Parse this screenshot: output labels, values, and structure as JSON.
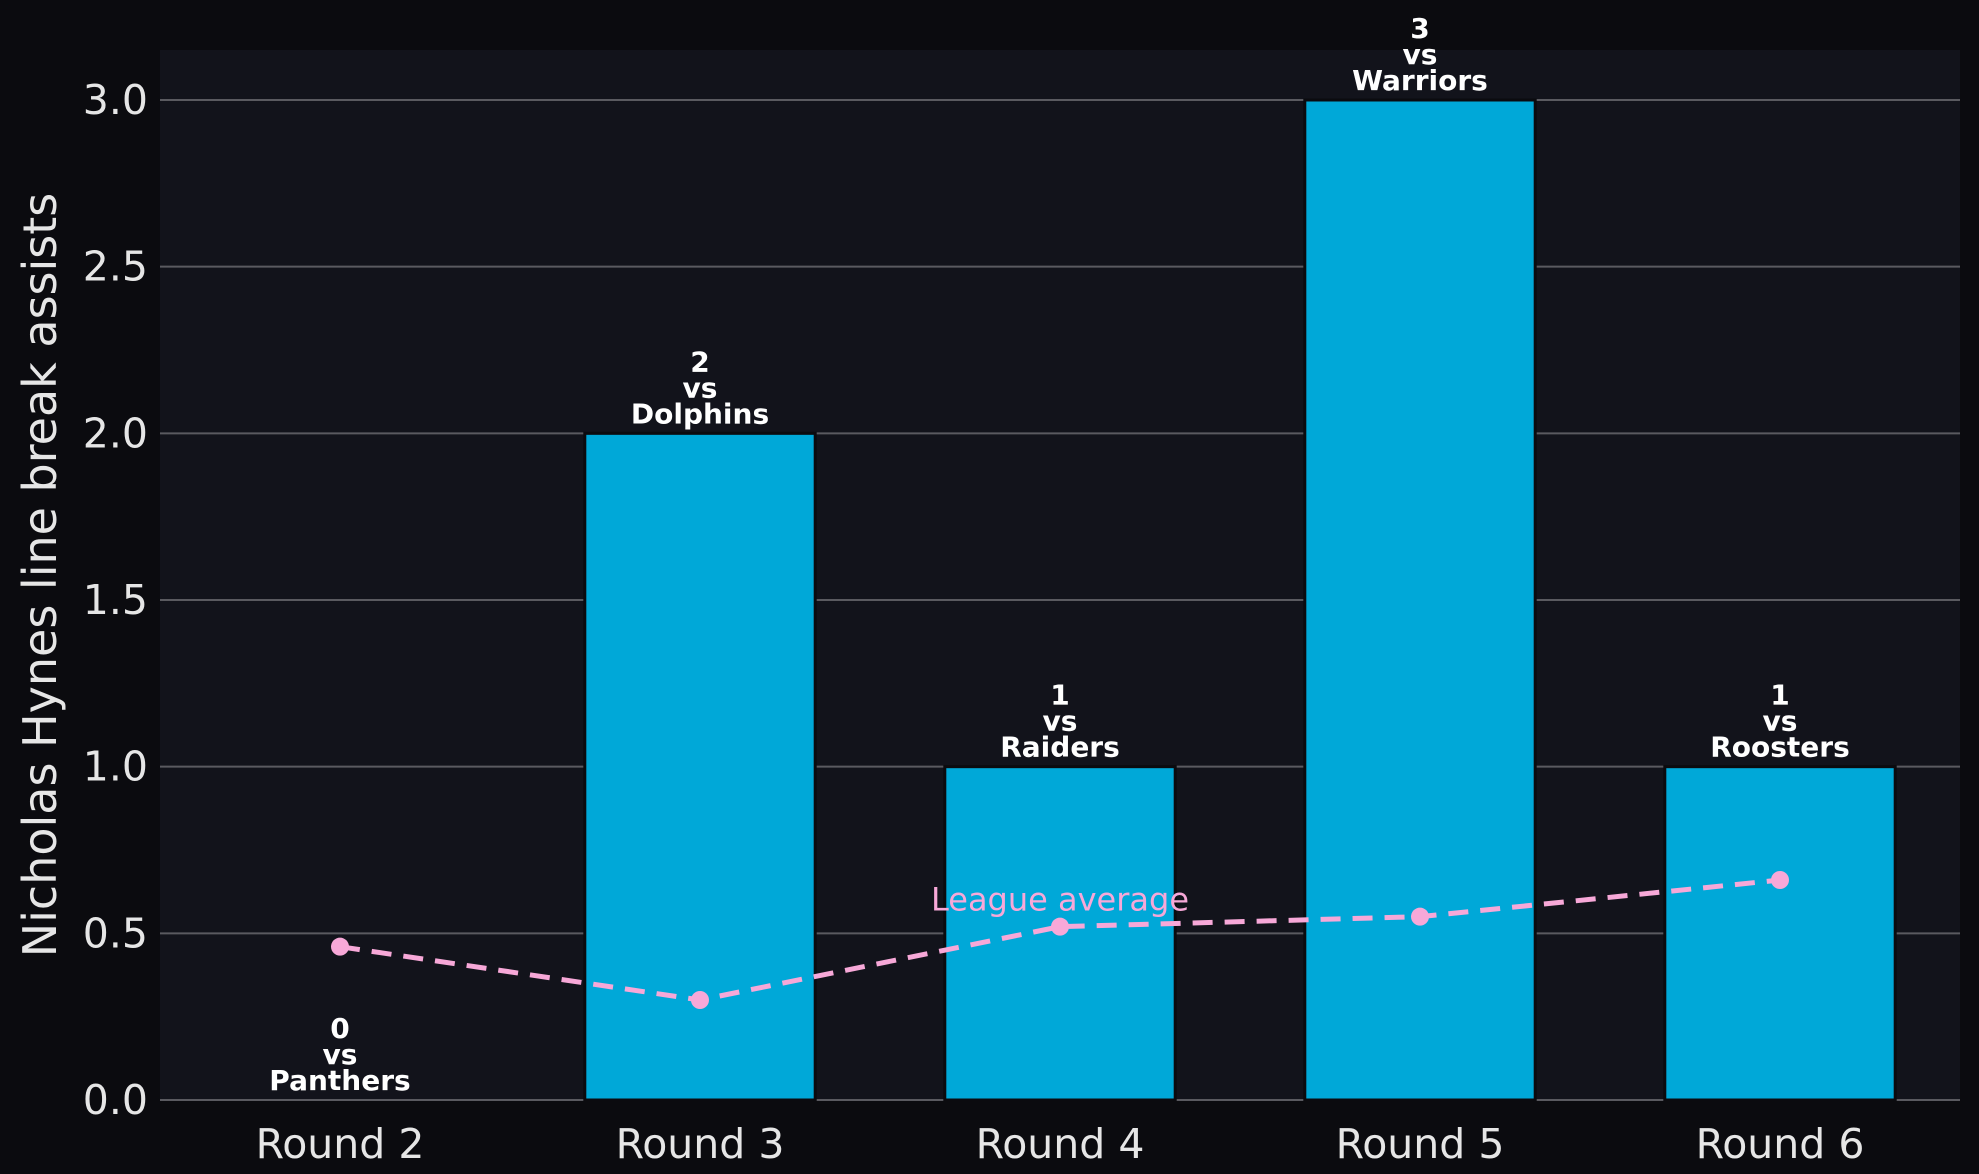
{
  "chart_data": {
    "type": "bar",
    "categories": [
      "Round 2",
      "Round 3",
      "Round 4",
      "Round 5",
      "Round 6"
    ],
    "series": [
      {
        "values": [
          0,
          2,
          1,
          3,
          1
        ],
        "opponents": [
          "Panthers",
          "Dolphins",
          "Raiders",
          "Warriors",
          "Roosters"
        ],
        "vs_text": "vs",
        "color": "#00a8d8"
      },
      {
        "name": "League average",
        "type": "line",
        "style": "dashed",
        "values": [
          0.46,
          0.3,
          0.52,
          0.55,
          0.66
        ],
        "color": "#f7a8d8"
      }
    ],
    "xlabel": "",
    "ylabel": "Nicholas Hynes line break assists",
    "ylim": [
      0,
      3.15
    ],
    "yticks": [
      "0.0",
      "0.5",
      "1.0",
      "1.5",
      "2.0",
      "2.5",
      "3.0"
    ],
    "grid": true,
    "colors": {
      "background": "#0b0b0f",
      "plot_background": "#12131b",
      "grid": "#5a5a60",
      "text": "#e6e6e6"
    }
  }
}
